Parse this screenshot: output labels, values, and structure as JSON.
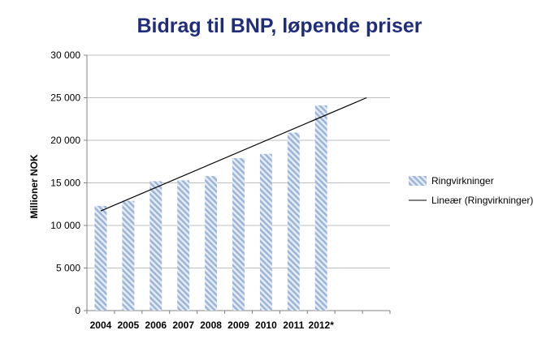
{
  "chart_data": {
    "type": "bar",
    "title": "Bidrag til BNP, løpende priser",
    "ylabel": "Millioner NOK",
    "xlabel": "",
    "categories": [
      "2004",
      "2005",
      "2006",
      "2007",
      "2008",
      "2009",
      "2010",
      "2011",
      "2012*"
    ],
    "series": [
      {
        "name": "Ringvirkninger",
        "values": [
          12300,
          12900,
          15200,
          15300,
          15800,
          17900,
          18400,
          20900,
          24100
        ],
        "color": "#a9bfdc",
        "pattern": "diagonal-hatch"
      }
    ],
    "trendline": {
      "name": "Lineær (Ringvirkninger)",
      "start": [
        2004,
        11700
      ],
      "end": [
        2014,
        25000
      ],
      "color": "#000000"
    },
    "ylim": [
      0,
      30000
    ],
    "yticks": [
      0,
      5000,
      10000,
      15000,
      20000,
      25000,
      30000
    ],
    "ytick_labels": [
      "0",
      "5 000",
      "10 000",
      "15 000",
      "20 000",
      "25 000",
      "30 000"
    ],
    "x_slots": 11,
    "grid": true,
    "legend_position": "right"
  }
}
